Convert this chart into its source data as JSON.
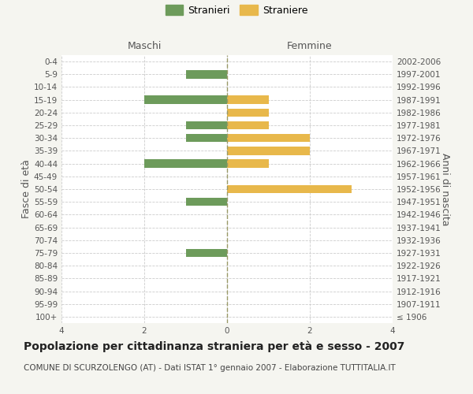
{
  "age_groups": [
    "100+",
    "95-99",
    "90-94",
    "85-89",
    "80-84",
    "75-79",
    "70-74",
    "65-69",
    "60-64",
    "55-59",
    "50-54",
    "45-49",
    "40-44",
    "35-39",
    "30-34",
    "25-29",
    "20-24",
    "15-19",
    "10-14",
    "5-9",
    "0-4"
  ],
  "birth_years": [
    "≤ 1906",
    "1907-1911",
    "1912-1916",
    "1917-1921",
    "1922-1926",
    "1927-1931",
    "1932-1936",
    "1937-1941",
    "1942-1946",
    "1947-1951",
    "1952-1956",
    "1957-1961",
    "1962-1966",
    "1967-1971",
    "1972-1976",
    "1977-1981",
    "1982-1986",
    "1987-1991",
    "1992-1996",
    "1997-2001",
    "2002-2006"
  ],
  "maschi": [
    0,
    0,
    0,
    0,
    0,
    1,
    0,
    0,
    0,
    1,
    0,
    0,
    2,
    0,
    1,
    1,
    0,
    2,
    0,
    1,
    0
  ],
  "femmine": [
    0,
    0,
    0,
    0,
    0,
    0,
    0,
    0,
    0,
    0,
    3,
    0,
    1,
    2,
    2,
    1,
    1,
    1,
    0,
    0,
    0
  ],
  "color_maschi": "#6d9b5b",
  "color_femmine": "#e8b84b",
  "xlim": 4,
  "title": "Popolazione per cittadinanza straniera per età e sesso - 2007",
  "subtitle": "COMUNE DI SCURZOLENGO (AT) - Dati ISTAT 1° gennaio 2007 - Elaborazione TUTTITALIA.IT",
  "ylabel_left": "Fasce di età",
  "ylabel_right": "Anni di nascita",
  "legend_maschi": "Stranieri",
  "legend_femmine": "Straniere",
  "xlabel_maschi": "Maschi",
  "xlabel_femmine": "Femmine",
  "bg_color": "#f5f5f0",
  "bar_bg_color": "#ffffff",
  "grid_color": "#cccccc",
  "center_line_color": "#999966",
  "title_fontsize": 10,
  "subtitle_fontsize": 7.5,
  "tick_fontsize": 7.5,
  "label_fontsize": 9,
  "legend_fontsize": 9
}
